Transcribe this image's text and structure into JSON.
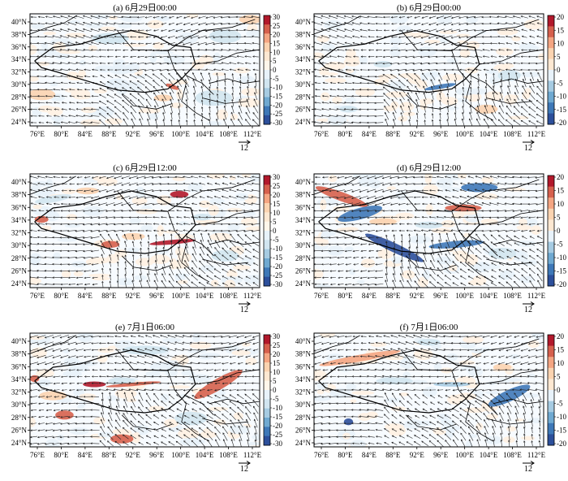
{
  "lat_labels": [
    "40°N",
    "38°N",
    "36°N",
    "34°N",
    "32°N",
    "30°N",
    "28°N",
    "26°N",
    "24°N"
  ],
  "lon_labels": [
    "76°E",
    "80°E",
    "84°E",
    "88°E",
    "92°E",
    "96°E",
    "100°E",
    "104°E",
    "108°E",
    "112°E"
  ],
  "scale_value": "12",
  "colorbar_left": {
    "labels": [
      "30",
      "25",
      "20",
      "15",
      "10",
      "5",
      "0",
      "-5",
      "-10",
      "-15",
      "-20",
      "-25",
      "-30"
    ],
    "colors": [
      "#b2182b",
      "#d6604d",
      "#f4a582",
      "#fbd3b0",
      "#fde8d2",
      "#fff6ea",
      "#e8f2fa",
      "#d1e5f0",
      "#a6cbe2",
      "#6fa9d1",
      "#3e78b8",
      "#2c4f9b"
    ]
  },
  "colorbar_right": {
    "labels": [
      "20",
      "15",
      "10",
      "5",
      "0",
      "-5",
      "-10",
      "-15",
      "-20"
    ],
    "colors": [
      "#b2182b",
      "#d6604d",
      "#f4a582",
      "#fbd3b0",
      "#fde8d2",
      "#e8f2fa",
      "#a6cbe2",
      "#6fa9d1",
      "#3e78b8",
      "#2c4f9b"
    ]
  },
  "panels": [
    {
      "title": "(a) 6月29日00:00"
    },
    {
      "title": "(b) 6月29日00:00"
    },
    {
      "title": "(c) 6月29日12:00"
    },
    {
      "title": "(d) 6月29日12:00"
    },
    {
      "title": "(e) 7月1日06:00"
    },
    {
      "title": "(f) 7月1日06:00"
    }
  ]
}
